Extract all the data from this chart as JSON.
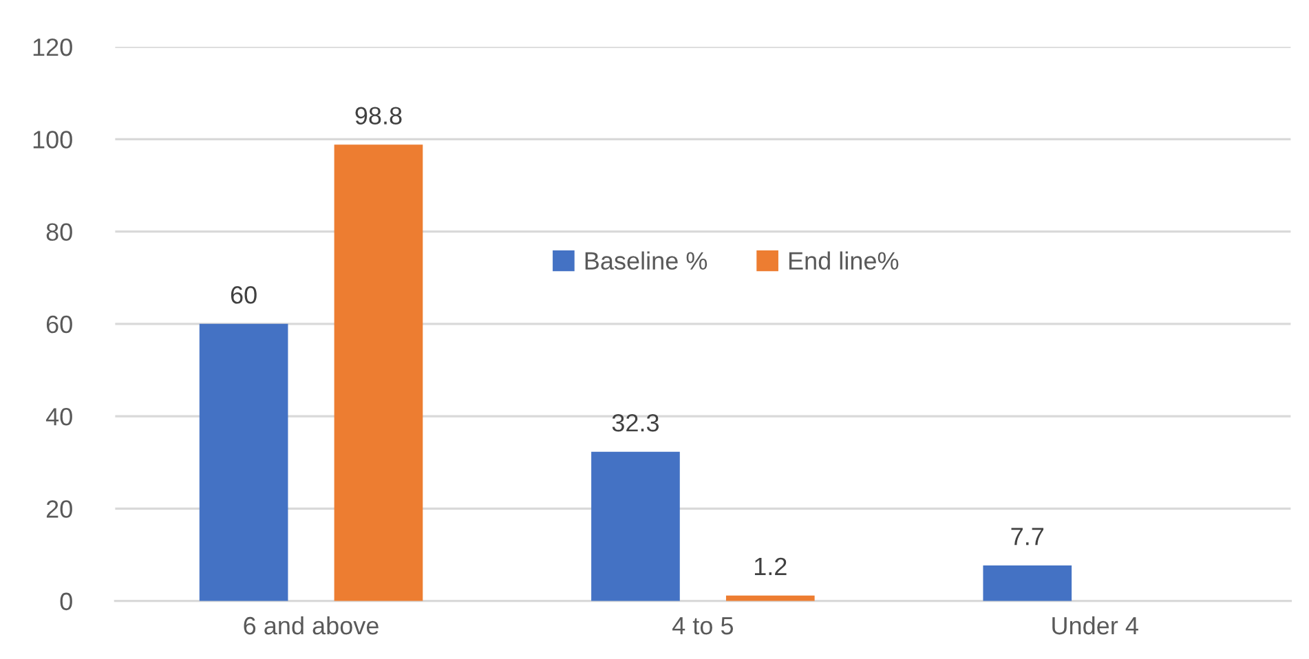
{
  "chart_data": {
    "type": "bar",
    "categories": [
      "6 and above",
      "4 to 5",
      "Under 4"
    ],
    "series": [
      {
        "name": "Baseline %",
        "color": "#4472c4",
        "values": [
          60,
          32.3,
          7.7
        ]
      },
      {
        "name": "End line%",
        "color": "#ed7d31",
        "values": [
          98.8,
          1.2,
          null
        ]
      }
    ],
    "ylim": [
      0,
      120
    ],
    "yticks": [
      0,
      20,
      40,
      60,
      80,
      100,
      120
    ],
    "grid": "y",
    "legend": "center",
    "data_labels": true
  }
}
